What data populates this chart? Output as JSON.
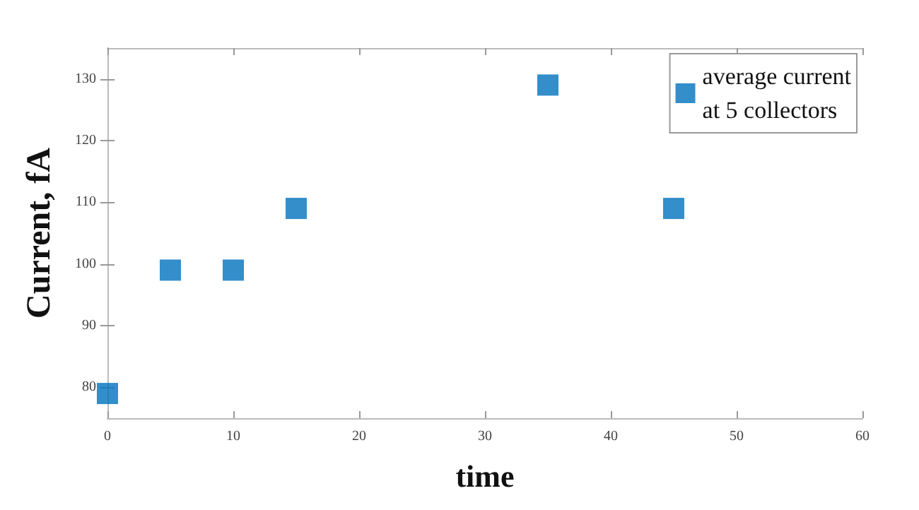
{
  "chart_data": {
    "type": "scatter",
    "xlabel": "time",
    "ylabel": "Current, fA",
    "x": [
      0,
      5,
      10,
      15,
      35,
      45
    ],
    "series": [
      {
        "name": "average current\nat 5 collectors",
        "color": "#0072bd",
        "values": [
          79,
          99,
          99,
          109,
          129,
          109
        ]
      }
    ],
    "xlim": [
      0,
      60
    ],
    "xticks": [
      0,
      10,
      20,
      30,
      40,
      50,
      60
    ],
    "ylim": [
      75,
      135
    ],
    "yticks": [
      80,
      90,
      100,
      110,
      120,
      130
    ],
    "marker": "square",
    "legend": "top right",
    "grid": false
  }
}
